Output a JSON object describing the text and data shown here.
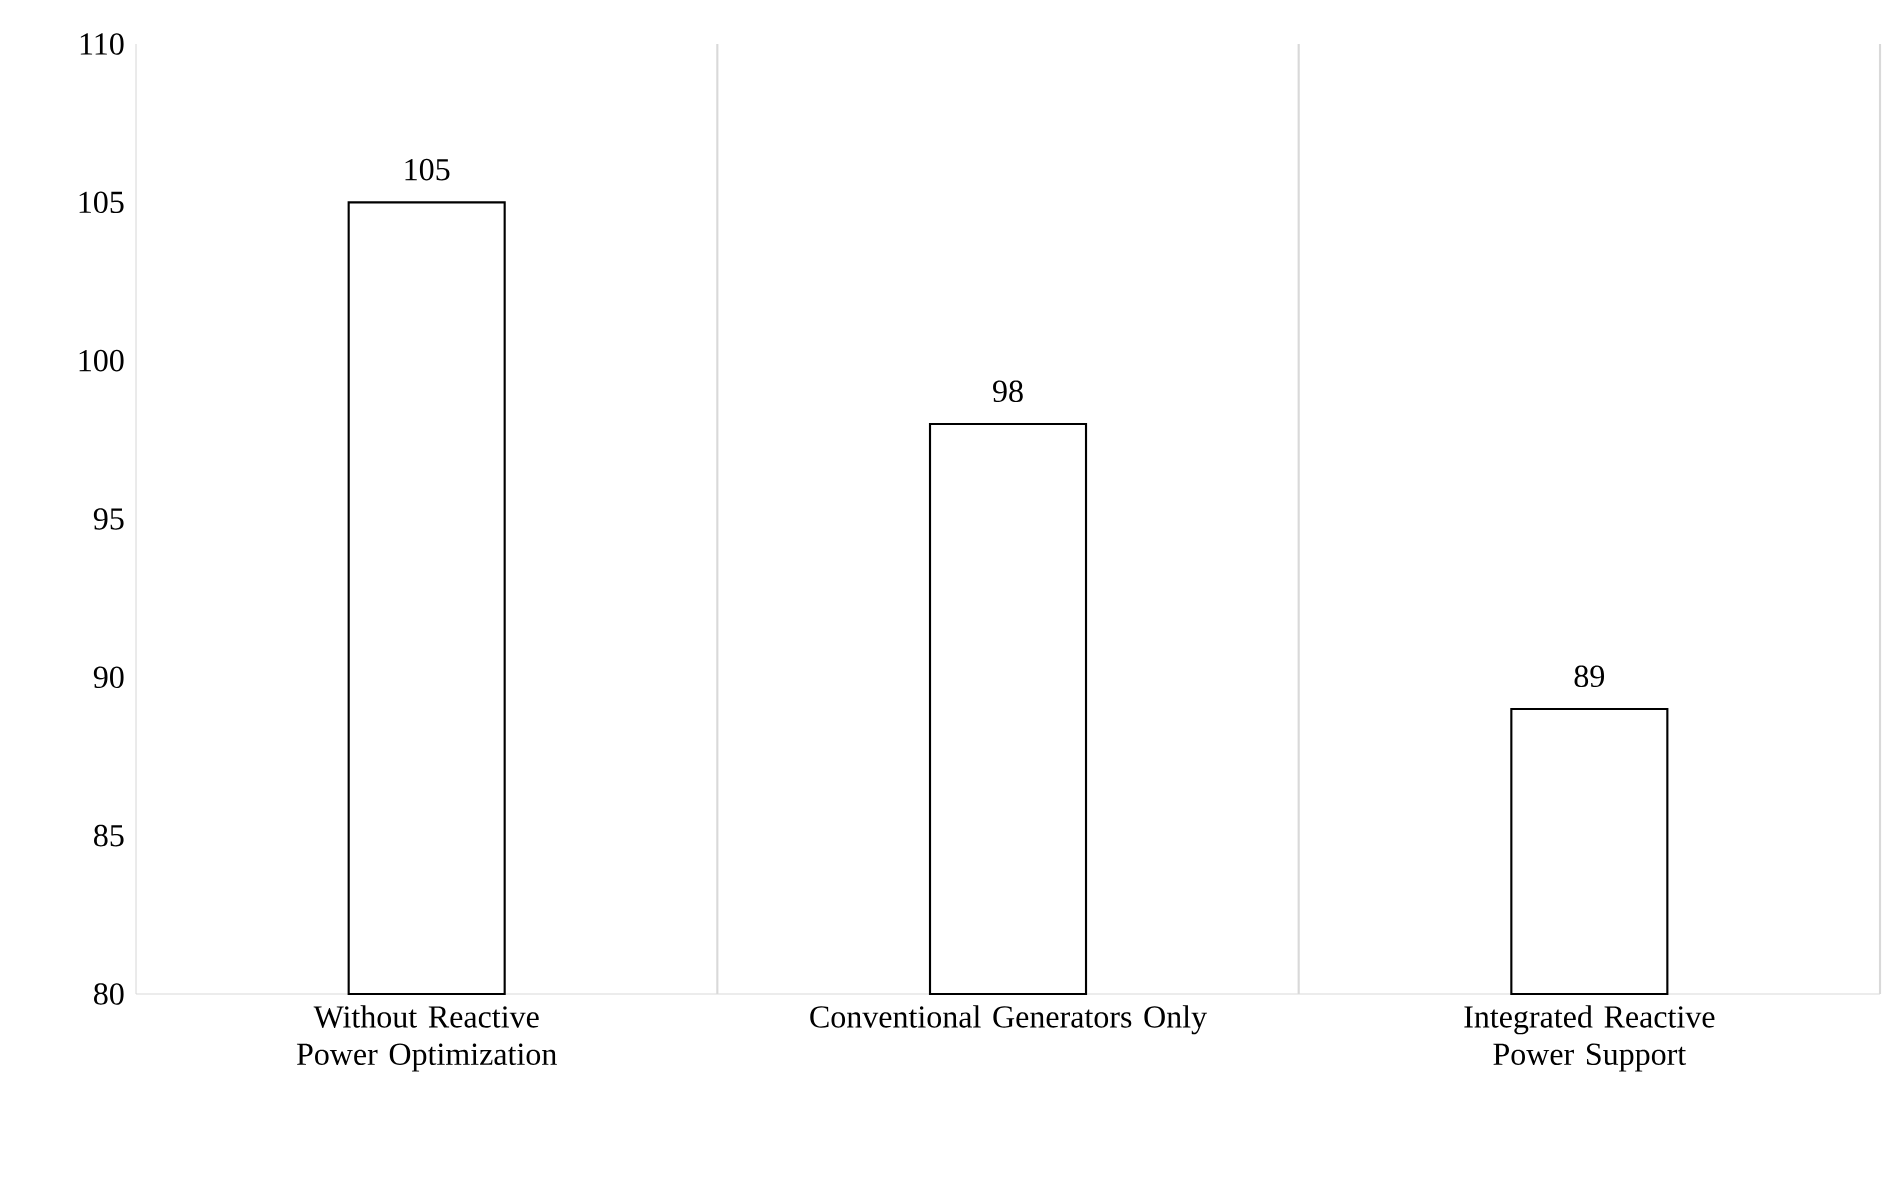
{
  "chart_data": {
    "type": "bar",
    "categories": [
      "Without Reactive Power Optimization",
      "Conventional Generators Only",
      "Integrated Reactive Power Support"
    ],
    "values": [
      105,
      98,
      89
    ],
    "color": "#000000",
    "ylim": [
      80,
      110
    ],
    "yticks": [
      80,
      85,
      90,
      95,
      100,
      105,
      110
    ],
    "grid": "x",
    "data_labels": true
  }
}
